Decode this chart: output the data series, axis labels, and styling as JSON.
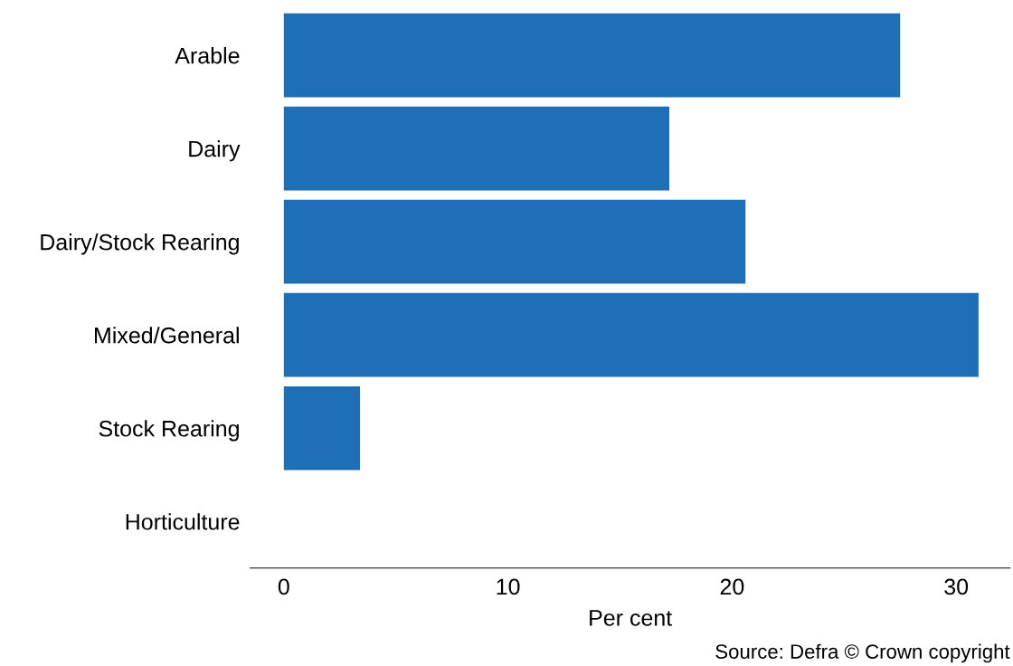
{
  "chart_data": {
    "type": "bar",
    "orientation": "horizontal",
    "xlabel": "Per cent",
    "categories": [
      "Arable",
      "Dairy",
      "Dairy/Stock Rearing",
      "Mixed/General",
      "Stock Rearing",
      "Horticulture"
    ],
    "values": [
      27.5,
      17.2,
      20.6,
      31.0,
      3.4,
      0
    ],
    "color": "#1f6fb7",
    "xlim": [
      -1.5,
      32.4
    ],
    "xticks": [
      0,
      10,
      20,
      30
    ],
    "grid": false,
    "legend": false,
    "annotations": [
      "Source: Defra © Crown copyright"
    ]
  }
}
